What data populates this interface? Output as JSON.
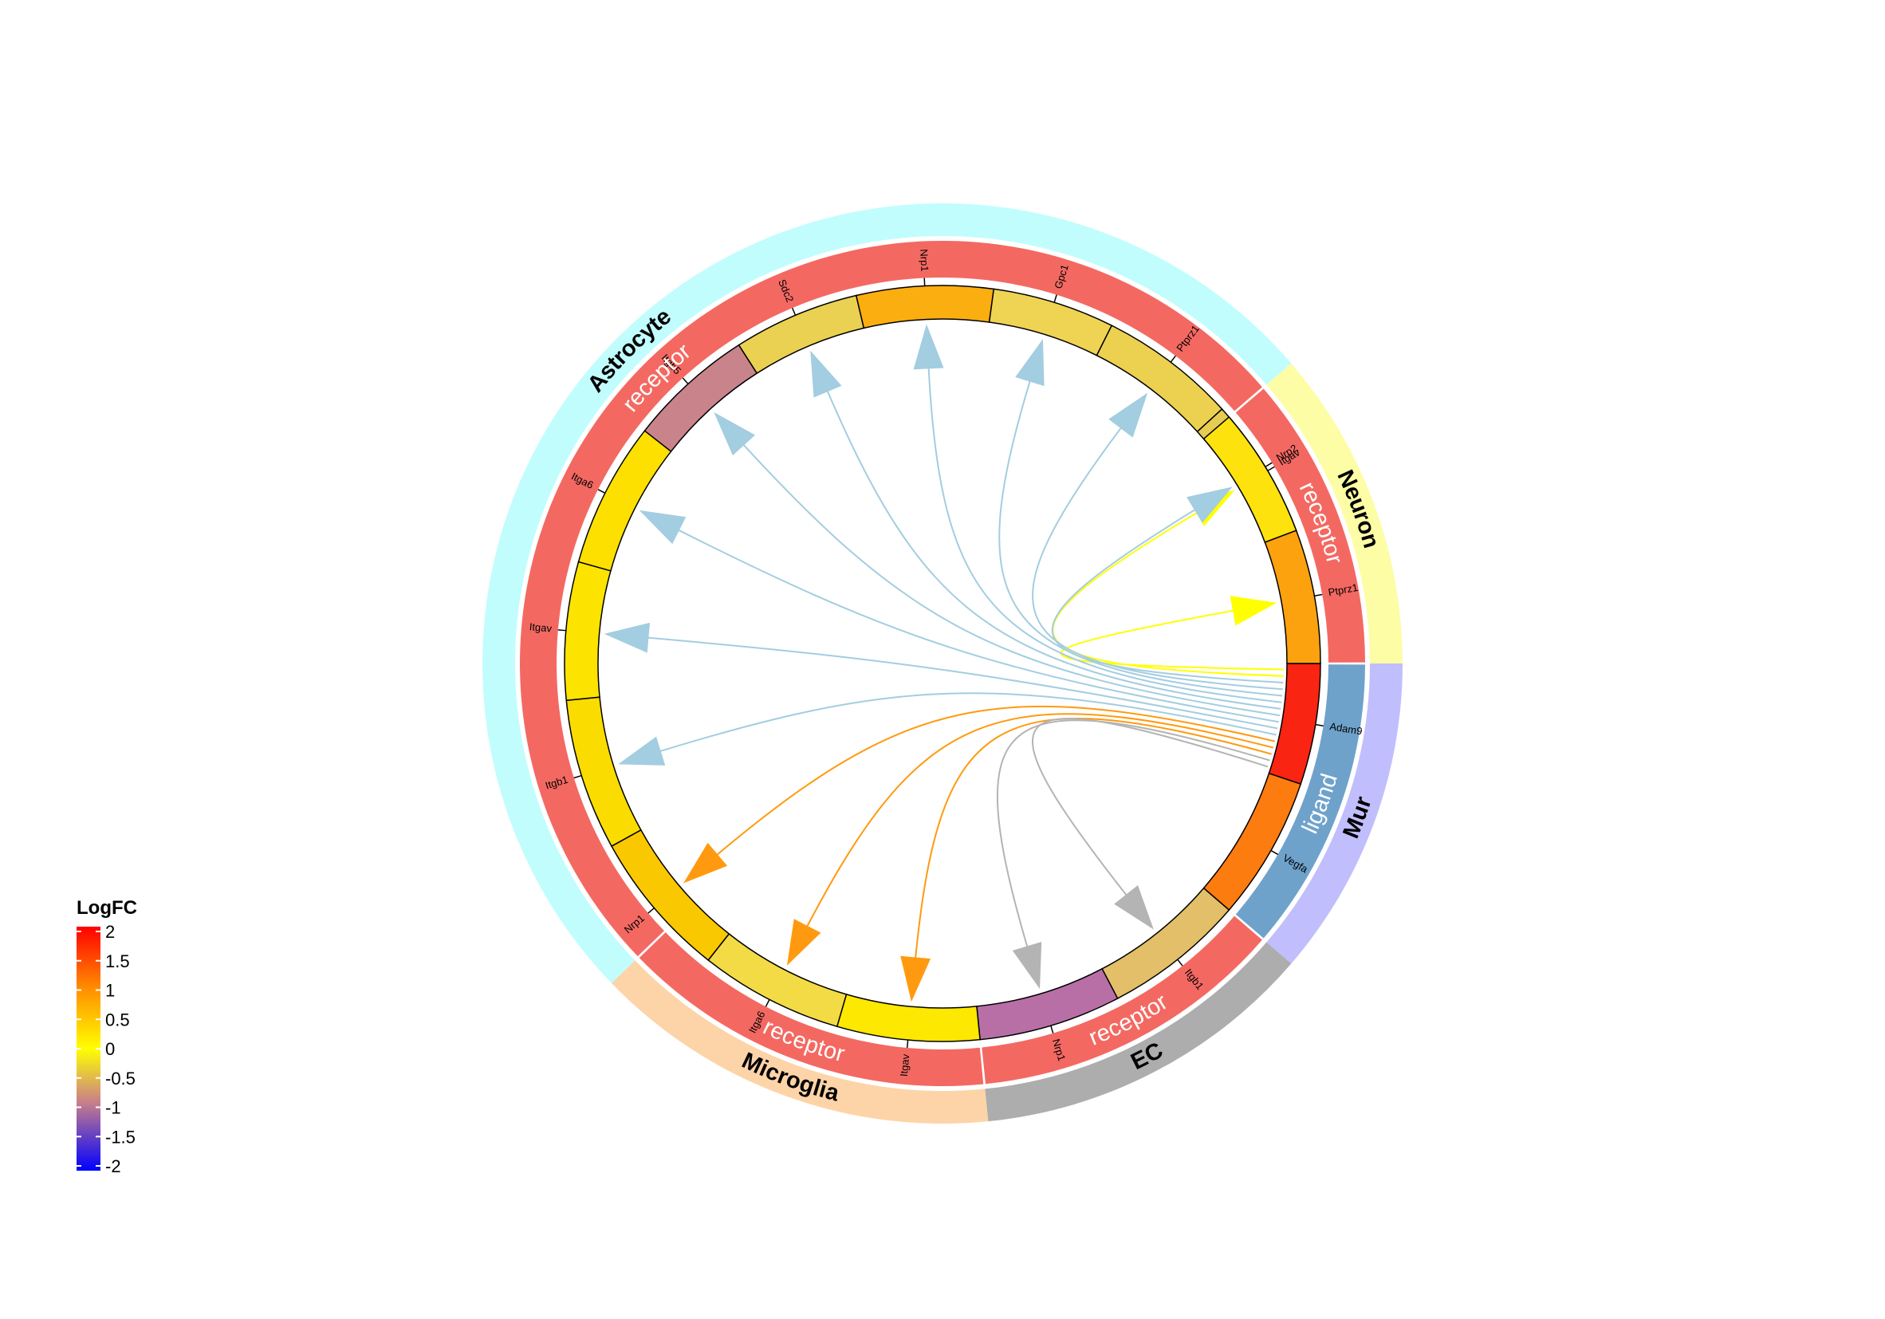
{
  "legend": {
    "title": "LogFC",
    "ticks": [
      "2",
      "1.5",
      "1",
      "0.5",
      "0",
      "-0.5",
      "-1",
      "-1.5",
      "-2"
    ],
    "color_stops": [
      "#ff0000",
      "#ff8c00",
      "#ffff00",
      "#c87f8a",
      "#0000ff"
    ],
    "range": [
      -2,
      2
    ]
  },
  "groups": [
    {
      "name": "Astrocyte",
      "color": "#c2fdfd"
    },
    {
      "name": "Neuron",
      "color": "#fdfda6"
    },
    {
      "name": "Mur",
      "color": "#c1befe"
    },
    {
      "name": "EC",
      "color": "#adadad"
    },
    {
      "name": "Microglia",
      "color": "#fdd4a8"
    }
  ],
  "roles": [
    {
      "label": "receptor",
      "group": "Astrocyte",
      "color": "#f36962"
    },
    {
      "label": "receptor",
      "group": "Neuron",
      "color": "#f36962"
    },
    {
      "label": "ligand",
      "group": "Mur",
      "color": "#6fa2cb"
    },
    {
      "label": "receptor",
      "group": "EC",
      "color": "#f36962"
    },
    {
      "label": "receptor",
      "group": "Microglia",
      "color": "#f36962"
    }
  ],
  "genes": [
    {
      "name": "Adam9",
      "group": "Mur",
      "role": "ligand",
      "color": "#fa2412",
      "logfc": 1.9
    },
    {
      "name": "Vegfa",
      "group": "Mur",
      "role": "ligand",
      "color": "#fd7c10",
      "logfc": 1.3
    },
    {
      "name": "Itgb1",
      "group": "EC",
      "role": "receptor",
      "color": "#e2bf68",
      "logfc": -0.4
    },
    {
      "name": "Nrp1",
      "group": "EC",
      "role": "receptor",
      "color": "#b76fa6",
      "logfc": -1.2
    },
    {
      "name": "Itgav",
      "group": "Microglia",
      "role": "receptor",
      "color": "#fce800",
      "logfc": 0.0
    },
    {
      "name": "Itga6",
      "group": "Microglia",
      "role": "receptor",
      "color": "#f2db45",
      "logfc": -0.2
    },
    {
      "name": "Nrp1",
      "group": "Microglia",
      "role": "receptor",
      "color": "#f9c800",
      "logfc": 0.4
    },
    {
      "name": "Itgb1",
      "group": "Astrocyte",
      "role": "receptor",
      "color": "#fbdc00",
      "logfc": 0.1
    },
    {
      "name": "Itgav",
      "group": "Astrocyte",
      "role": "receptor",
      "color": "#fce400",
      "logfc": 0.0
    },
    {
      "name": "Itga6",
      "group": "Astrocyte",
      "role": "receptor",
      "color": "#fde000",
      "logfc": 0.0
    },
    {
      "name": "Itgb5",
      "group": "Astrocyte",
      "role": "receptor",
      "color": "#c9838b",
      "logfc": -0.8
    },
    {
      "name": "Sdc2",
      "group": "Astrocyte",
      "role": "receptor",
      "color": "#ead152",
      "logfc": -0.3
    },
    {
      "name": "Nrp1",
      "group": "Astrocyte",
      "role": "receptor",
      "color": "#fbae10",
      "logfc": 0.8
    },
    {
      "name": "Gpc1",
      "group": "Astrocyte",
      "role": "receptor",
      "color": "#efd352",
      "logfc": -0.3
    },
    {
      "name": "Ptprz1",
      "group": "Astrocyte",
      "role": "receptor",
      "color": "#ecd150",
      "logfc": -0.3
    },
    {
      "name": "Nrp2",
      "group": "Astrocyte",
      "role": "receptor",
      "color": "#e6cc53",
      "logfc": -0.4
    },
    {
      "name": "Itgav",
      "group": "Neuron",
      "role": "receptor",
      "color": "#fde20e",
      "logfc": 0.0
    },
    {
      "name": "Ptprz1",
      "group": "Neuron",
      "role": "receptor",
      "color": "#fba20e",
      "logfc": 0.9
    }
  ],
  "links": [
    {
      "from": 0,
      "to": 17,
      "color": "#ffff00"
    },
    {
      "from": 0,
      "to": 16,
      "color": "#ffff00"
    },
    {
      "from": 0,
      "to": 15,
      "color": "#a3cde0"
    },
    {
      "from": 0,
      "to": 14,
      "color": "#a3cde0"
    },
    {
      "from": 0,
      "to": 13,
      "color": "#a3cde0"
    },
    {
      "from": 0,
      "to": 12,
      "color": "#a3cde0"
    },
    {
      "from": 0,
      "to": 11,
      "color": "#a3cde0"
    },
    {
      "from": 0,
      "to": 10,
      "color": "#a3cde0"
    },
    {
      "from": 0,
      "to": 9,
      "color": "#a3cde0"
    },
    {
      "from": 0,
      "to": 8,
      "color": "#a3cde0"
    },
    {
      "from": 0,
      "to": 7,
      "color": "#a3cde0"
    },
    {
      "from": 0,
      "to": 6,
      "color": "#ff9a10"
    },
    {
      "from": 0,
      "to": 5,
      "color": "#ff9a10"
    },
    {
      "from": 0,
      "to": 4,
      "color": "#ff9a10"
    },
    {
      "from": 0,
      "to": 3,
      "color": "#b4b4b4"
    },
    {
      "from": 0,
      "to": 2,
      "color": "#b4b4b4"
    }
  ]
}
